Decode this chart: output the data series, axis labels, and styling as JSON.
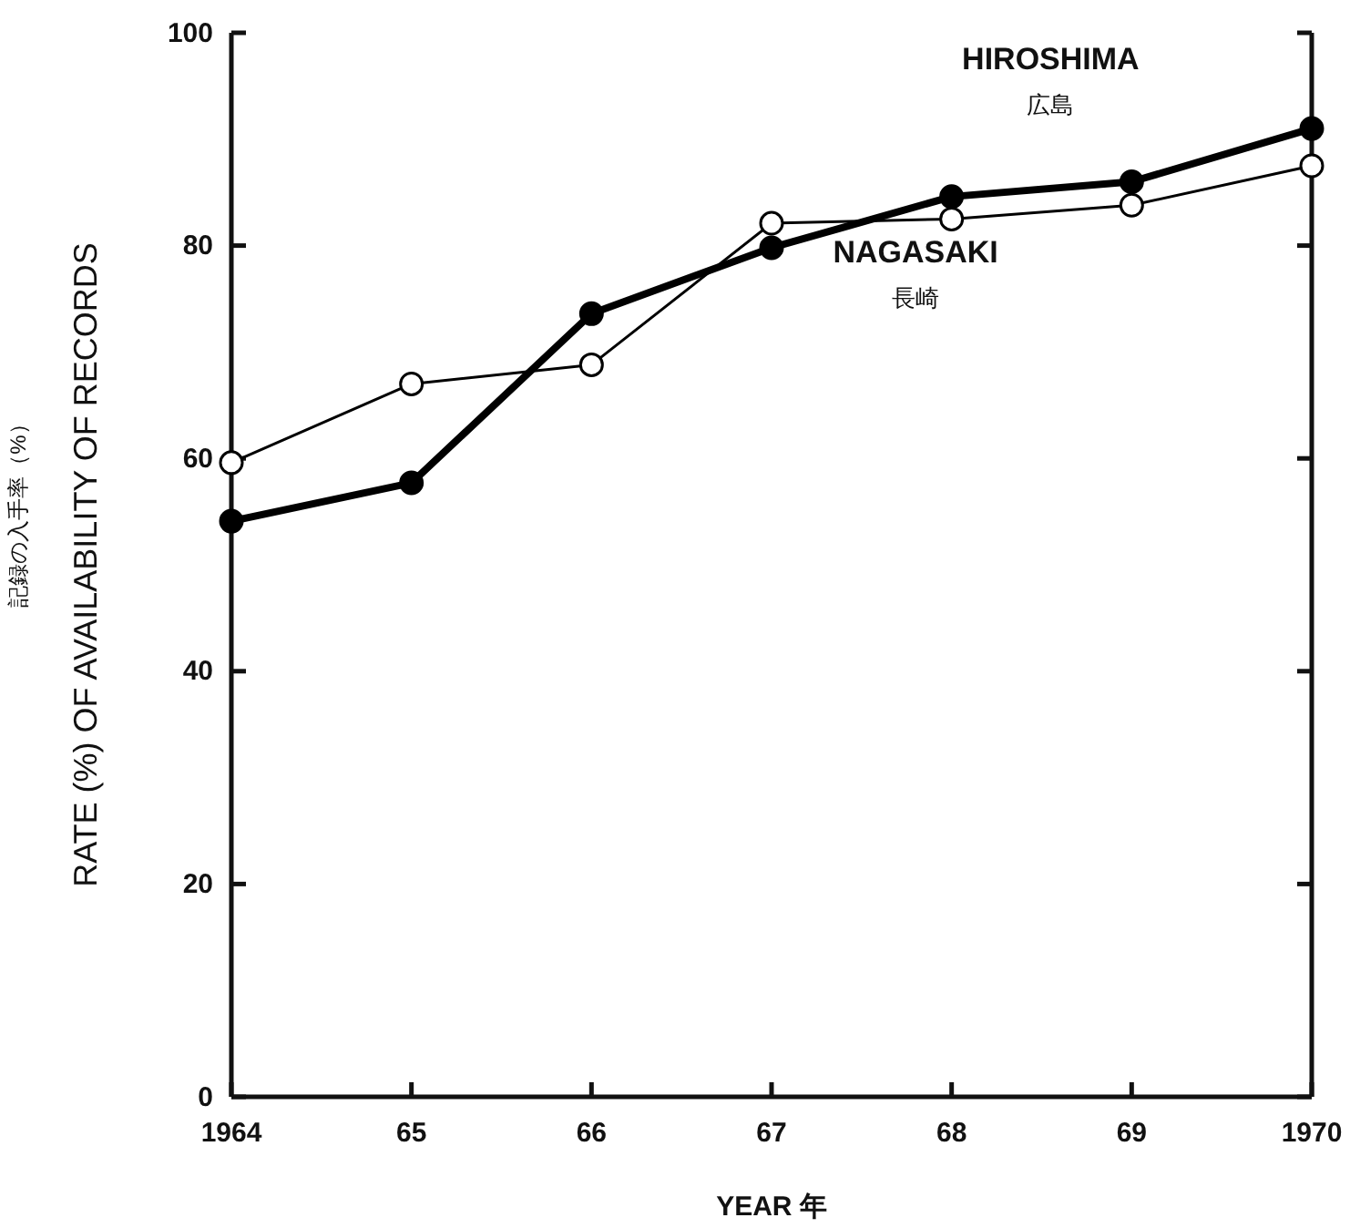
{
  "chart_data": {
    "type": "line",
    "xlabel": "YEAR 年",
    "ylabel": "RATE (%) OF AVAILABILITY OF RECORDS",
    "annotations": [
      "記録の入手率（%）"
    ],
    "x": [
      1964,
      1965,
      1966,
      1967,
      1968,
      1969,
      1970
    ],
    "xlim": [
      1964,
      1970
    ],
    "xticks": [
      {
        "value": 1964,
        "label": "1964"
      },
      {
        "value": 1965,
        "label": "65"
      },
      {
        "value": 1966,
        "label": "66"
      },
      {
        "value": 1967,
        "label": "67"
      },
      {
        "value": 1968,
        "label": "68"
      },
      {
        "value": 1969,
        "label": "69"
      },
      {
        "value": 1970,
        "label": "1970"
      }
    ],
    "ylim": [
      0,
      100
    ],
    "yticks": [
      0,
      20,
      40,
      60,
      80,
      100
    ],
    "grid": false,
    "legend": false,
    "marker": "circle",
    "line_style": "solid",
    "series": [
      {
        "name": "HIROSHIMA\n広島",
        "color": "#000000",
        "values": [
          54.1,
          57.7,
          73.6,
          79.8,
          84.6,
          86,
          91
        ]
      },
      {
        "name": "NAGASAKI\n長崎",
        "color": "#ffffff",
        "values": [
          59.6,
          67,
          68.8,
          82.1,
          82.5,
          83.8,
          87.5
        ]
      }
    ]
  }
}
